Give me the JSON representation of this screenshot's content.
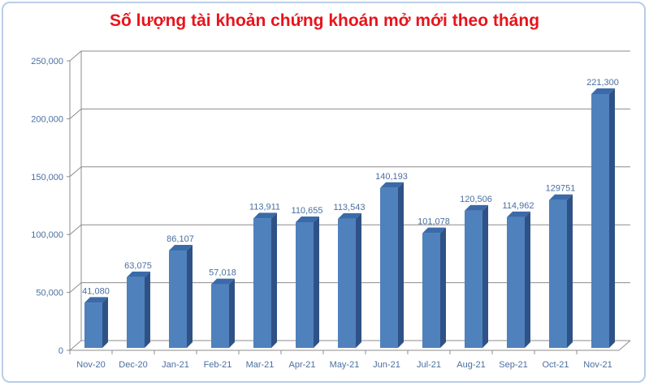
{
  "chart_data": {
    "type": "bar",
    "title": "Số lượng tài khoản chứng khoán mở mới theo tháng",
    "xlabel": "",
    "ylabel": "",
    "categories": [
      "Nov-20",
      "Dec-20",
      "Jan-21",
      "Feb-21",
      "Mar-21",
      "Apr-21",
      "May-21",
      "Jun-21",
      "Jul-21",
      "Aug-21",
      "Sep-21",
      "Oct-21",
      "Nov-21"
    ],
    "values": [
      41080,
      63075,
      86107,
      57018,
      113911,
      110655,
      113543,
      140193,
      101078,
      120506,
      114962,
      129751,
      221300
    ],
    "data_labels": [
      "41,080",
      "63,075",
      "86,107",
      "57,018",
      "113,911",
      "110,655",
      "113,543",
      "140,193",
      "101,078",
      "120,506",
      "114,962",
      "129751",
      "221,300"
    ],
    "ylim": [
      0,
      250000
    ],
    "yticks": [
      0,
      50000,
      100000,
      150000,
      200000,
      250000
    ],
    "ytick_labels": [
      "0",
      "50,000",
      "100,000",
      "150,000",
      "200,000",
      "250,000"
    ],
    "grid": true,
    "style": "3d-column",
    "colors": {
      "bar_front": "#4f81bd",
      "bar_side": "#2f5286",
      "bar_top": "#3a6aa8",
      "label": "#4a6fa0",
      "title": "#e8141b",
      "grid": "#8c8c8c"
    }
  }
}
